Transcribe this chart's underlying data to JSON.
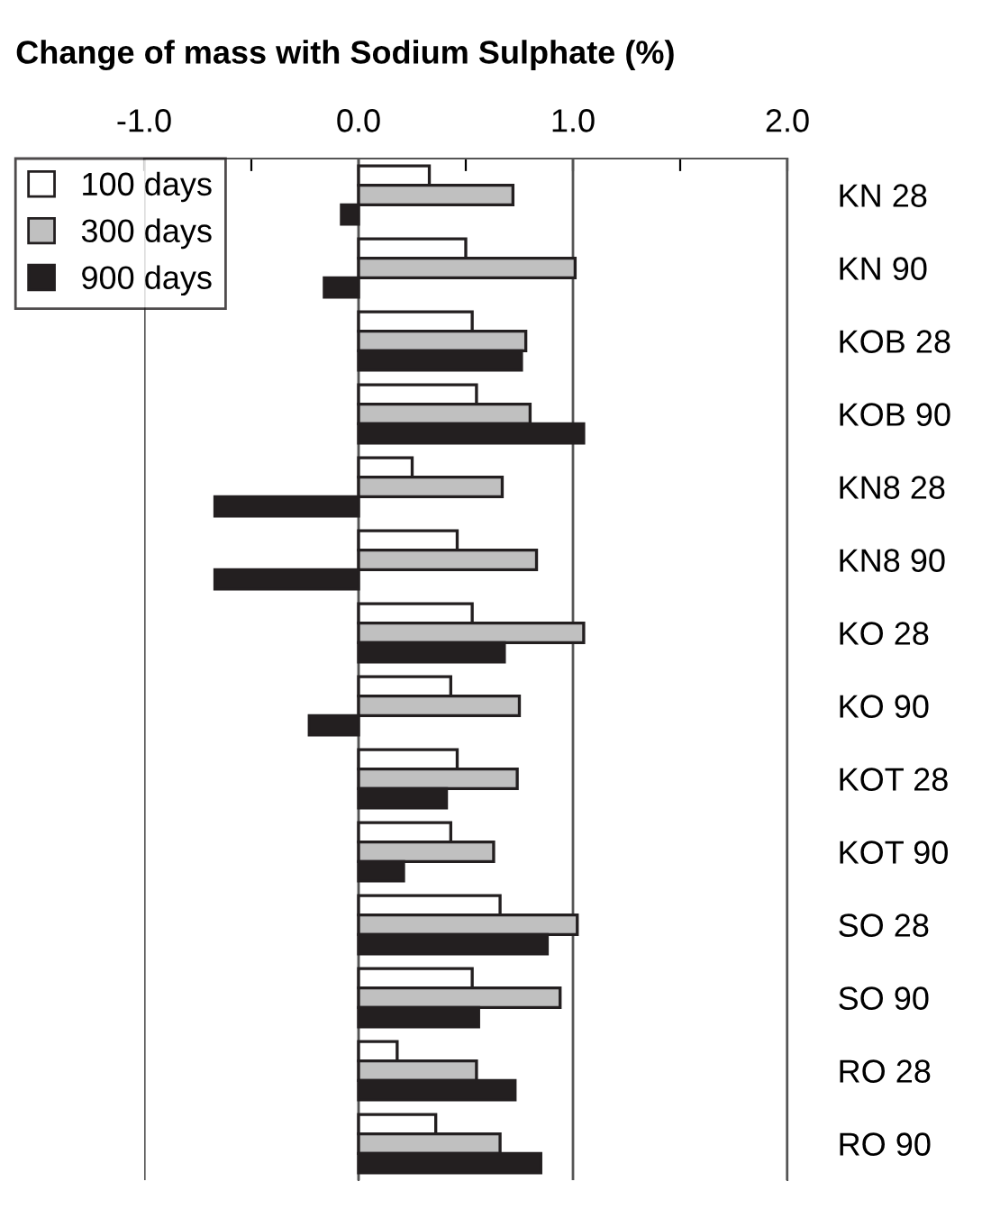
{
  "chart_data": {
    "type": "bar",
    "orientation": "horizontal",
    "title": "Change of mass with Sodium Sulphate (%)",
    "categories": [
      "KN 28",
      "KN 90",
      "KOB 28",
      "KOB 90",
      "KN8 28",
      "KN8 90",
      "KO 28",
      "KO 90",
      "KOT 28",
      "KOT 90",
      "SO 28",
      "SO 90",
      "RO 28",
      "RO 90"
    ],
    "series": [
      {
        "name": "100 days",
        "color": "#ffffff",
        "values": [
          0.33,
          0.5,
          0.53,
          0.55,
          0.25,
          0.46,
          0.53,
          0.43,
          0.46,
          0.43,
          0.66,
          0.53,
          0.18,
          0.36
        ]
      },
      {
        "name": "300 days",
        "color": "#c0c0c0",
        "values": [
          0.72,
          1.01,
          0.78,
          0.8,
          0.67,
          0.83,
          1.05,
          0.75,
          0.74,
          0.63,
          1.02,
          0.94,
          0.55,
          0.66
        ]
      },
      {
        "name": "900 days",
        "color": "#231f20",
        "values": [
          -0.08,
          -0.16,
          0.76,
          1.05,
          -0.67,
          -0.67,
          0.68,
          -0.23,
          0.41,
          0.21,
          0.88,
          0.56,
          0.73,
          0.85
        ]
      }
    ],
    "xlim": [
      -1.0,
      2.0
    ],
    "xticks": [
      {
        "value": -1.0,
        "label": "-1.0"
      },
      {
        "value": -0.5,
        "label": null
      },
      {
        "value": 0.0,
        "label": "0.0"
      },
      {
        "value": 0.5,
        "label": null
      },
      {
        "value": 1.0,
        "label": "1.0"
      },
      {
        "value": 1.5,
        "label": null
      },
      {
        "value": 2.0,
        "label": "2.0"
      }
    ],
    "grid": "x",
    "legend": "top left"
  }
}
